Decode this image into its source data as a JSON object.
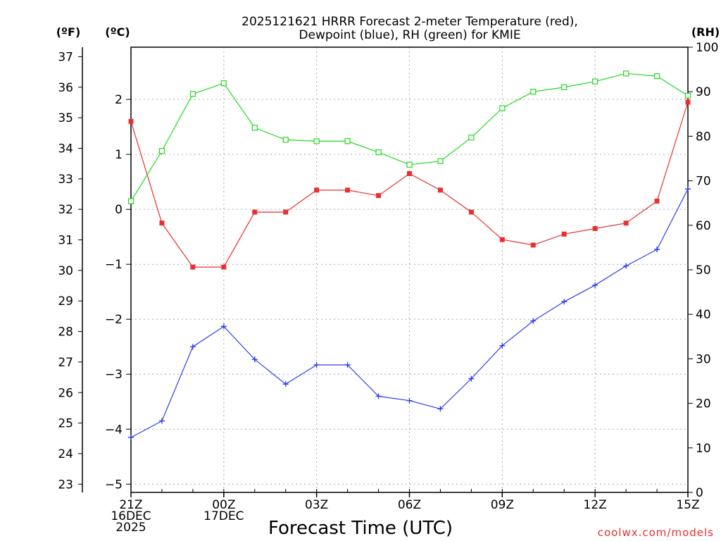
{
  "chart_data": {
    "type": "line",
    "title_line1": "2025121621 HRRR Forecast 2-meter Temperature (red),",
    "title_line2": "Dewpoint (blue), RH (green) for KMIE",
    "xlabel": "Forecast Time (UTC)",
    "credit": "coolwx.com/models",
    "left_unit_f": "(ºF)",
    "left_unit_c": "(ºC)",
    "right_unit": "(RH)",
    "x_count": 19,
    "x_ticks": [
      {
        "index": 0,
        "lines": [
          "21Z",
          "16DEC",
          "2025"
        ]
      },
      {
        "index": 3,
        "lines": [
          "00Z",
          "17DEC"
        ]
      },
      {
        "index": 6,
        "lines": [
          "03Z"
        ]
      },
      {
        "index": 9,
        "lines": [
          "06Z"
        ]
      },
      {
        "index": 12,
        "lines": [
          "09Z"
        ]
      },
      {
        "index": 15,
        "lines": [
          "12Z"
        ]
      },
      {
        "index": 18,
        "lines": [
          "15Z"
        ]
      }
    ],
    "yaxis_c": {
      "range": [
        -5.15,
        2.95
      ],
      "ticks": [
        -5,
        -4,
        -3,
        -2,
        -1,
        0,
        1,
        2
      ]
    },
    "yaxis_f": {
      "ticks": [
        23,
        24,
        25,
        26,
        27,
        28,
        29,
        30,
        31,
        32,
        33,
        34,
        35,
        36,
        37
      ]
    },
    "yaxis_rh": {
      "range": [
        0,
        100
      ],
      "ticks": [
        0,
        10,
        20,
        30,
        40,
        50,
        60,
        70,
        80,
        90,
        100
      ]
    },
    "series": [
      {
        "name": "Temperature",
        "units": "C",
        "color": "#e83030",
        "marker": "filled-square",
        "values": [
          1.6,
          -0.25,
          -1.05,
          -1.05,
          -0.05,
          -0.05,
          0.35,
          0.35,
          0.25,
          0.65,
          0.35,
          -0.05,
          -0.55,
          -0.65,
          -0.45,
          -0.35,
          -0.25,
          0.15,
          1.95
        ]
      },
      {
        "name": "Dewpoint",
        "units": "C",
        "color": "#2a3ff0",
        "marker": "plus",
        "values": [
          -4.15,
          -3.85,
          -2.5,
          -2.13,
          -2.73,
          -3.18,
          -2.83,
          -2.83,
          -3.4,
          -3.48,
          -3.63,
          -3.08,
          -2.48,
          -2.03,
          -1.68,
          -1.38,
          -1.03,
          -0.73,
          0.37
        ]
      },
      {
        "name": "RH",
        "units": "%",
        "color": "#22d822",
        "marker": "open-square",
        "values": [
          65.4,
          76.7,
          89.5,
          91.9,
          81.9,
          79.2,
          78.9,
          78.9,
          76.4,
          73.6,
          74.4,
          79.7,
          86.3,
          90.0,
          91.0,
          92.3,
          94.1,
          93.5,
          89.1
        ]
      }
    ]
  }
}
